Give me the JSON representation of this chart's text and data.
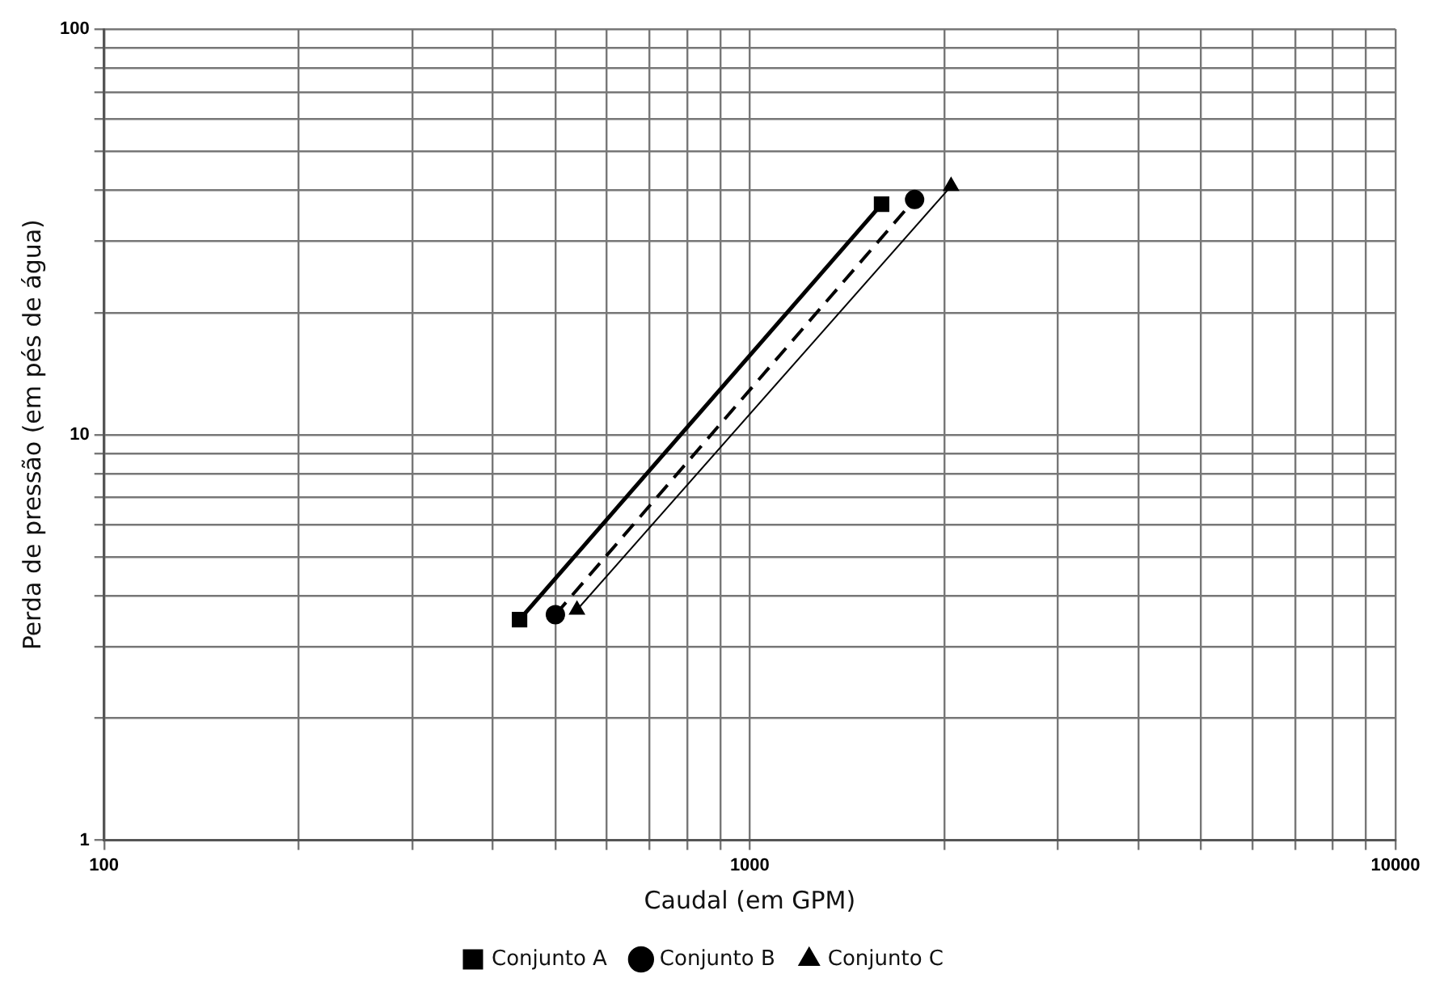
{
  "chart_data": {
    "type": "line",
    "xlabel": "Caudal (em GPM)",
    "ylabel": "Perda de pressão (em pés de água)",
    "log": "xy",
    "grid": true,
    "legend": "bottom",
    "xlim": [
      100,
      10000
    ],
    "ylim": [
      1,
      100
    ],
    "xticks": [
      100,
      {
        "value": 200,
        "label": null
      },
      {
        "value": 300,
        "label": null
      },
      {
        "value": 400,
        "label": null
      },
      {
        "value": 500,
        "label": null
      },
      {
        "value": 600,
        "label": null
      },
      {
        "value": 700,
        "label": null
      },
      {
        "value": 800,
        "label": null
      },
      {
        "value": 900,
        "label": null
      },
      1000,
      {
        "value": 2000,
        "label": null
      },
      {
        "value": 3000,
        "label": null
      },
      {
        "value": 4000,
        "label": null
      },
      {
        "value": 5000,
        "label": null
      },
      {
        "value": 6000,
        "label": null
      },
      {
        "value": 7000,
        "label": null
      },
      {
        "value": 8000,
        "label": null
      },
      {
        "value": 9000,
        "label": null
      },
      10000
    ],
    "yticks": [
      1,
      {
        "value": 2,
        "label": null
      },
      {
        "value": 3,
        "label": null
      },
      {
        "value": 4,
        "label": null
      },
      {
        "value": 5,
        "label": null
      },
      {
        "value": 6,
        "label": null
      },
      {
        "value": 7,
        "label": null
      },
      {
        "value": 8,
        "label": null
      },
      {
        "value": 9,
        "label": null
      },
      10,
      {
        "value": 20,
        "label": null
      },
      {
        "value": 30,
        "label": null
      },
      {
        "value": 40,
        "label": null
      },
      {
        "value": 50,
        "label": null
      },
      {
        "value": 60,
        "label": null
      },
      {
        "value": 70,
        "label": null
      },
      {
        "value": 80,
        "label": null
      },
      {
        "value": 90,
        "label": null
      },
      100
    ],
    "series": [
      {
        "name": "Conjunto A",
        "color": "#000000",
        "marker": "square",
        "line_style": "solid",
        "x": [
          440,
          1600
        ],
        "values": [
          3.5,
          37
        ]
      },
      {
        "name": "Conjunto B",
        "color": "#000000",
        "marker": "circle",
        "line_style": "dashed",
        "x": [
          500,
          1800
        ],
        "values": [
          3.6,
          38
        ]
      },
      {
        "name": "Conjunto C",
        "color": "#000000",
        "marker": "triangle",
        "line_style": "solid",
        "x": [
          540,
          2050
        ],
        "values": [
          3.7,
          41
        ]
      }
    ]
  }
}
